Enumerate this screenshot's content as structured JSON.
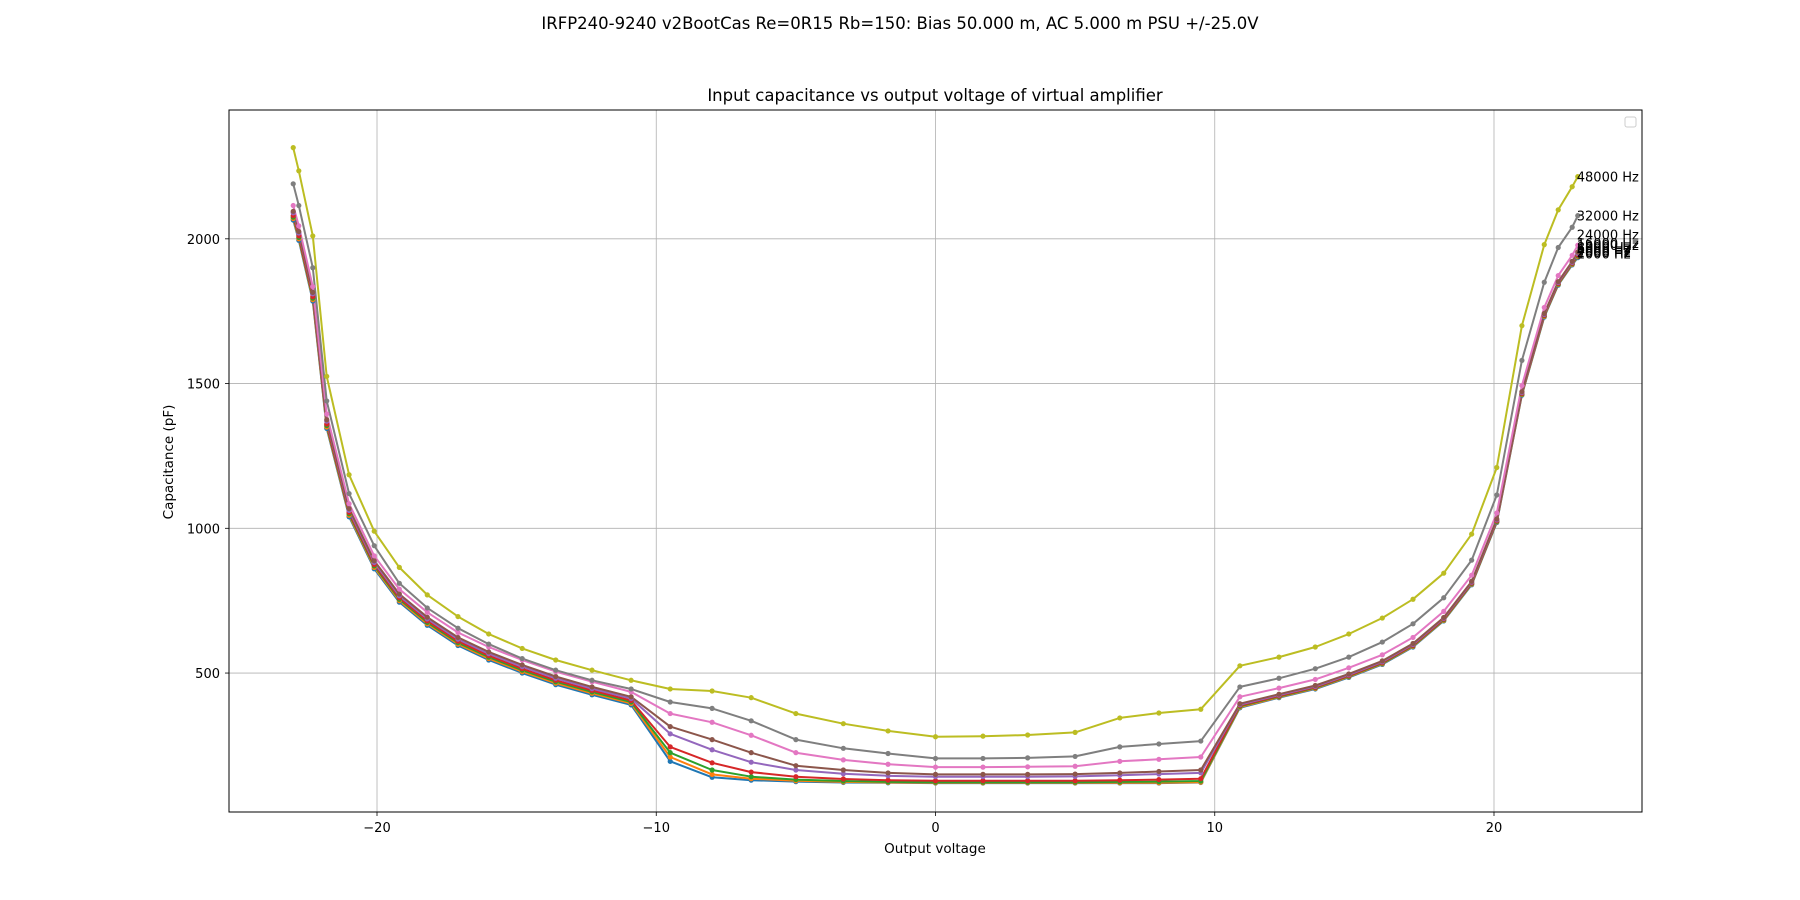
{
  "figure": {
    "suptitle": "IRFP240-9240 v2BootCas Re=0R15 Rb=150: Bias 50.000 m, AC 5.000 m PSU +/-25.0V"
  },
  "chart_data": {
    "type": "line",
    "title": "Input capacitance vs output voltage of virtual amplifier",
    "xlabel": "Output voltage",
    "ylabel": "Capacitance (pF)",
    "xlim": [
      -25.3,
      25.3
    ],
    "ylim": [
      20,
      2445
    ],
    "xticks": [
      -20,
      -10,
      0,
      10,
      20
    ],
    "xtick_labels": [
      "−20",
      "−10",
      "0",
      "10",
      "20"
    ],
    "yticks": [
      500,
      1000,
      1500,
      2000
    ],
    "yticks_labels": [
      "500",
      "1000",
      "1500",
      "2000"
    ],
    "grid": true,
    "legend": "top-right (empty)",
    "x": [
      -23.0,
      -22.8,
      -22.3,
      -21.8,
      -21.0,
      -20.1,
      -19.2,
      -18.2,
      -17.1,
      -16.0,
      -14.8,
      -13.6,
      -12.3,
      -10.9,
      -9.5,
      -8.0,
      -6.6,
      -5.0,
      -3.3,
      -1.7,
      0.0,
      1.7,
      3.3,
      5.0,
      6.6,
      8.0,
      9.5,
      10.9,
      12.3,
      13.6,
      14.8,
      16.0,
      17.1,
      18.2,
      19.2,
      20.1,
      21.0,
      21.8,
      22.3,
      22.8,
      23.0
    ],
    "series": [
      {
        "name": "1000 Hz",
        "color": "#1f77b4",
        "values": [
          2065,
          1995,
          1785,
          1345,
          1040,
          860,
          745,
          665,
          595,
          545,
          500,
          460,
          425,
          390,
          195,
          140,
          130,
          125,
          122,
          121,
          120,
          120,
          120,
          120,
          120,
          120,
          122,
          380,
          415,
          445,
          485,
          530,
          590,
          680,
          805,
          1020,
          1460,
          1730,
          1840,
          1910,
          1935
        ]
      },
      {
        "name": "2000 Hz",
        "color": "#ff7f0e",
        "values": [
          2070,
          2000,
          1790,
          1350,
          1045,
          865,
          750,
          670,
          600,
          550,
          505,
          465,
          430,
          395,
          210,
          150,
          135,
          128,
          124,
          122,
          121,
          121,
          121,
          121,
          121,
          121,
          123,
          382,
          417,
          447,
          487,
          532,
          592,
          682,
          807,
          1022,
          1462,
          1732,
          1842,
          1912,
          1938
        ]
      },
      {
        "name": "4000 Hz",
        "color": "#2ca02c",
        "values": [
          2075,
          2005,
          1795,
          1355,
          1050,
          870,
          755,
          675,
          605,
          555,
          510,
          470,
          435,
          400,
          225,
          165,
          142,
          132,
          127,
          124,
          123,
          123,
          123,
          123,
          124,
          125,
          127,
          385,
          419,
          449,
          489,
          534,
          594,
          684,
          809,
          1024,
          1464,
          1734,
          1844,
          1914,
          1941
        ]
      },
      {
        "name": "6000 Hz",
        "color": "#d62728",
        "values": [
          2080,
          2010,
          1800,
          1360,
          1055,
          875,
          760,
          680,
          610,
          560,
          515,
          475,
          440,
          405,
          245,
          190,
          158,
          142,
          134,
          130,
          128,
          128,
          128,
          128,
          130,
          132,
          135,
          388,
          421,
          451,
          491,
          536,
          596,
          686,
          811,
          1026,
          1466,
          1736,
          1846,
          1916,
          1944
        ]
      },
      {
        "name": "8000 Hz",
        "color": "#9467bd",
        "values": [
          2090,
          2020,
          1810,
          1370,
          1062,
          882,
          767,
          687,
          617,
          567,
          522,
          482,
          446,
          412,
          290,
          235,
          192,
          165,
          152,
          145,
          142,
          142,
          142,
          143,
          147,
          151,
          155,
          391,
          424,
          454,
          494,
          539,
          599,
          689,
          814,
          1029,
          1469,
          1739,
          1849,
          1919,
          1949
        ]
      },
      {
        "name": "12000 Hz",
        "color": "#8c564b",
        "values": [
          2095,
          2025,
          1815,
          1375,
          1068,
          888,
          773,
          693,
          623,
          573,
          528,
          488,
          452,
          418,
          315,
          270,
          225,
          180,
          165,
          155,
          150,
          150,
          150,
          151,
          155,
          160,
          165,
          394,
          427,
          457,
          497,
          542,
          602,
          692,
          817,
          1032,
          1472,
          1742,
          1852,
          1922,
          1954
        ]
      },
      {
        "name": "16000 Hz",
        "color": "#e377c2",
        "values": [
          2115,
          2045,
          1835,
          1395,
          1085,
          905,
          790,
          710,
          640,
          590,
          545,
          505,
          470,
          435,
          360,
          330,
          285,
          225,
          200,
          185,
          175,
          175,
          176,
          178,
          195,
          202,
          210,
          418,
          448,
          478,
          518,
          563,
          623,
          713,
          838,
          1053,
          1493,
          1763,
          1873,
          1943,
          1978
        ]
      },
      {
        "name": "24000 Hz",
        "color": "#7f7f7f",
        "values": [
          2190,
          2115,
          1900,
          1440,
          1120,
          940,
          810,
          725,
          655,
          600,
          550,
          510,
          475,
          445,
          400,
          378,
          335,
          270,
          240,
          222,
          205,
          205,
          207,
          212,
          245,
          255,
          265,
          452,
          482,
          515,
          555,
          607,
          670,
          760,
          890,
          1115,
          1580,
          1850,
          1970,
          2040,
          2080
        ]
      },
      {
        "name": "32000 Hz",
        "color": "#bcbd22",
        "values": [
          2315,
          2235,
          2010,
          1525,
          1185,
          990,
          865,
          770,
          695,
          635,
          585,
          545,
          510,
          475,
          445,
          438,
          415,
          360,
          325,
          300,
          280,
          282,
          286,
          295,
          345,
          362,
          375,
          525,
          555,
          590,
          635,
          690,
          755,
          845,
          980,
          1210,
          1700,
          1980,
          2100,
          2180,
          2215
        ]
      }
    ],
    "right_labels": [
      {
        "text": "48000 Hz",
        "value": 2215
      },
      {
        "text": "32000 Hz",
        "value": 2080
      },
      {
        "text": "24000 Hz",
        "value": 2015
      },
      {
        "text": "16000 Hz",
        "value": 1985
      },
      {
        "text": "12000 Hz",
        "value": 1978
      },
      {
        "text": "8000 Hz",
        "value": 1972
      },
      {
        "text": "6000 Hz",
        "value": 1966
      },
      {
        "text": "4000 Hz",
        "value": 1960
      },
      {
        "text": "2000 Hz",
        "value": 1955
      },
      {
        "text": "1000 Hz",
        "value": 1950
      }
    ]
  }
}
